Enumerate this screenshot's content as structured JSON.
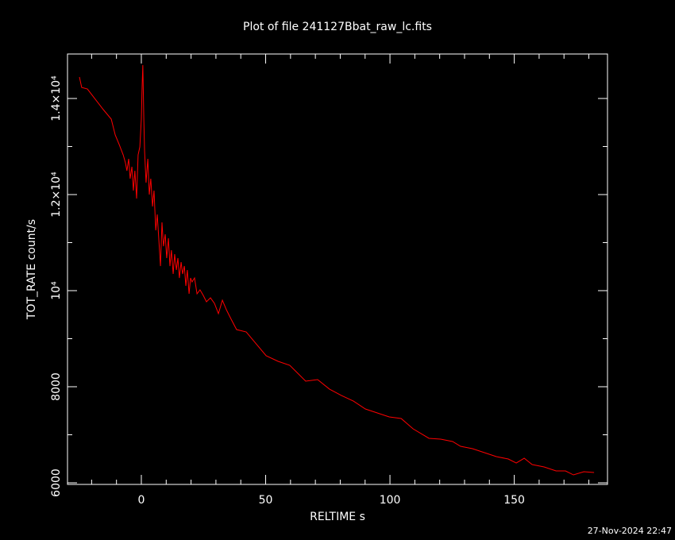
{
  "chart_data": {
    "type": "line",
    "title": "Plot of file 241127Bbat_raw_lc.fits",
    "x_label": "RELTIME  s",
    "y_label": "TOT_RATE  count/s",
    "date": "27-Nov-2024 22:47",
    "color": "#ff0000",
    "xlim": [
      -29.7,
      187.5
    ],
    "ylim": [
      5967,
      14926
    ],
    "xticks": [
      0,
      50,
      100,
      150
    ],
    "yticks": [
      6000,
      8000,
      {
        "value": 10000,
        "label": "10⁴"
      },
      {
        "value": 12000,
        "label": "1.2×10⁴"
      },
      {
        "value": 14000,
        "label": "1.4×10⁴"
      }
    ],
    "xminorticks": [
      -20,
      -10,
      10,
      20,
      30,
      40,
      60,
      70,
      80,
      90,
      110,
      120,
      130,
      140,
      160,
      170,
      180
    ],
    "yminorticks": [
      7000,
      9000,
      11000,
      13000
    ],
    "x": [
      -24.9,
      -24,
      -21.7,
      -18.5,
      -15.3,
      -12.1,
      -10.5,
      -8.9,
      -7.3,
      -6.4,
      -5.8,
      -5.1,
      -4.5,
      -3.8,
      -3.2,
      -2.6,
      -1.9,
      -1.3,
      -0.6,
      0,
      0.3,
      0.6,
      1.0,
      1.3,
      1.9,
      2.6,
      3.2,
      3.8,
      4.5,
      5.1,
      5.8,
      6.4,
      7.0,
      7.7,
      8.3,
      8.9,
      9.6,
      10.2,
      10.9,
      11.5,
      12.1,
      12.8,
      13.4,
      14.1,
      14.7,
      15.3,
      16.0,
      16.6,
      17.3,
      17.9,
      18.5,
      19.2,
      19.8,
      20.4,
      21.4,
      22.4,
      23.6,
      24.9,
      26.2,
      27.8,
      29.4,
      31.0,
      32.6,
      34.2,
      35.8,
      38.3,
      42.2,
      45.4,
      50.2,
      55.0,
      59.7,
      62.9,
      66.1,
      70.9,
      75.7,
      80.5,
      85.3,
      90.1,
      94.9,
      99.7,
      104.5,
      109.3,
      115.7,
      120.4,
      125.2,
      128.4,
      133.2,
      138.0,
      142.8,
      147.6,
      150.8,
      154.0,
      157.2,
      162.0,
      166.8,
      170.6,
      173.8,
      178.0,
      182.1
    ],
    "values": [
      14446,
      14231,
      14198,
      13983,
      13769,
      13570,
      13240,
      13041,
      12826,
      12661,
      12496,
      12744,
      12331,
      12579,
      12083,
      12496,
      11917,
      12826,
      12992,
      13570,
      14231,
      14694,
      13570,
      12909,
      12248,
      12744,
      12000,
      12331,
      11752,
      12083,
      11256,
      11587,
      11091,
      10512,
      11421,
      10925,
      11174,
      10678,
      11091,
      10512,
      10843,
      10347,
      10760,
      10430,
      10678,
      10264,
      10595,
      10347,
      10512,
      10099,
      10430,
      9934,
      10264,
      10182,
      10264,
      9934,
      10017,
      9901,
      9769,
      9851,
      9736,
      9521,
      9802,
      9603,
      9438,
      9190,
      9140,
      8942,
      8645,
      8529,
      8446,
      8281,
      8116,
      8149,
      7950,
      7818,
      7702,
      7537,
      7455,
      7372,
      7339,
      7124,
      6926,
      6909,
      6860,
      6760,
      6711,
      6628,
      6545,
      6496,
      6413,
      6512,
      6380,
      6331,
      6248,
      6248,
      6165,
      6231,
      6215
    ]
  }
}
